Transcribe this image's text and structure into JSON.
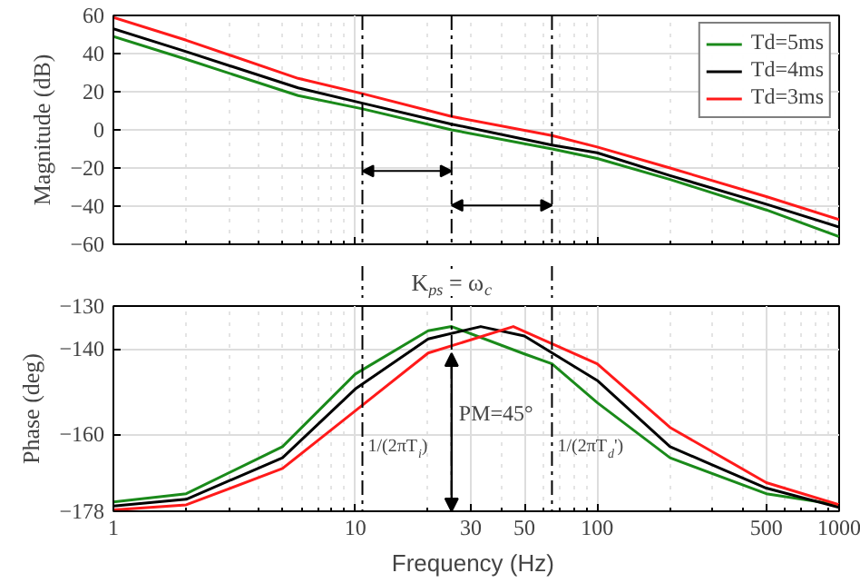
{
  "chart_data": [
    {
      "type": "line",
      "ylabel": "Magnitude (dB)",
      "xlim": [
        1,
        1000
      ],
      "ylim": [
        -60,
        60
      ],
      "log": "x",
      "grid": true,
      "legend": "top right",
      "tick_labels": "y",
      "line_style": "solid",
      "marker": "none",
      "xticks": [
        1,
        10,
        100,
        1000
      ],
      "yticks": [
        -60,
        -40,
        -20,
        0,
        20,
        40,
        60
      ],
      "x": [
        1,
        2,
        5.8,
        10.7,
        25,
        65,
        100,
        200,
        500,
        1000
      ],
      "series": [
        {
          "name": "Td=5ms",
          "color": "#1a8a1a",
          "values": [
            49,
            37,
            18,
            11,
            0,
            -10,
            -15,
            -26,
            -42,
            -56
          ]
        },
        {
          "name": "Td=4ms",
          "color": "#000000",
          "values": [
            53,
            41,
            22,
            14,
            3,
            -8,
            -12,
            -24,
            -39,
            -51
          ]
        },
        {
          "name": "Td=3ms",
          "color": "#ff1a1a",
          "values": [
            59,
            47,
            27,
            19,
            7,
            -3,
            -9,
            -20,
            -35,
            -47
          ]
        }
      ],
      "ref_lines": [
        {
          "axis": "x",
          "value": 10.7,
          "color": "#000000",
          "line_style": "dashed"
        },
        {
          "axis": "x",
          "value": 25,
          "color": "#000000",
          "line_style": "dashed"
        },
        {
          "axis": "x",
          "value": 65,
          "color": "#000000",
          "line_style": "dashed"
        }
      ]
    },
    {
      "type": "line",
      "ylabel": "Phase (deg)",
      "xlabel": "Frequency  (Hz)",
      "xlim": [
        1,
        1000
      ],
      "ylim": [
        -178,
        -130
      ],
      "log": "x",
      "grid": true,
      "line_style": "solid",
      "marker": "none",
      "xticks": [
        1,
        10,
        30,
        50,
        100,
        500,
        1000
      ],
      "yticks": [
        -178,
        -160,
        -140,
        -130
      ],
      "series": [
        {
          "color": "#1a8a1a",
          "x": [
            1,
            2,
            5,
            10,
            20,
            25,
            50,
            65,
            100,
            200,
            500,
            1000
          ],
          "values": [
            -175.8,
            -173.9,
            -162.9,
            -145.9,
            -135.8,
            -134.8,
            -141.2,
            -143.5,
            -152.6,
            -165.5,
            -173.9,
            -176.5
          ]
        },
        {
          "color": "#000000",
          "x": [
            1,
            2,
            5,
            10,
            20,
            33,
            50,
            100,
            200,
            500,
            1000
          ],
          "values": [
            -176.8,
            -175.2,
            -165.5,
            -149.4,
            -137.7,
            -134.8,
            -137,
            -147.4,
            -162.9,
            -172.6,
            -177.1
          ]
        },
        {
          "color": "#ff1a1a",
          "x": [
            1,
            2,
            5,
            10,
            20,
            45,
            100,
            200,
            500,
            1000
          ],
          "values": [
            -177.7,
            -176.5,
            -168,
            -154.5,
            -141,
            -134.8,
            -143.5,
            -158.4,
            -171.3,
            -176.5
          ]
        }
      ],
      "ref_lines": [
        {
          "axis": "x",
          "value": 10.7,
          "color": "#000000",
          "line_style": "dashed"
        },
        {
          "axis": "x",
          "value": 25,
          "color": "#000000",
          "line_style": "dashed"
        },
        {
          "axis": "x",
          "value": 65,
          "color": "#000000",
          "line_style": "dashed"
        }
      ],
      "annotations": [
        {
          "text": "K$_{ps}$ = ω$_{c}$",
          "x": 25,
          "y": -130
        },
        {
          "text": "PM=45°",
          "x": 25,
          "y": -155
        },
        {
          "text": "1/(2πT$_{i}$)",
          "x": 10.7,
          "y": -163
        },
        {
          "text": "1/(2πT$_{d}$')",
          "x": 65,
          "y": -163
        }
      ]
    }
  ]
}
